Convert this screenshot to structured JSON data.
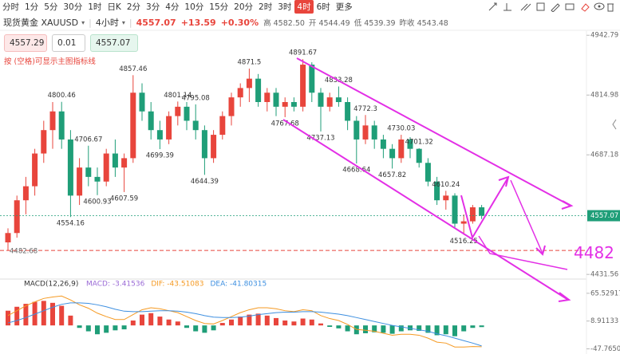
{
  "ui": {
    "timeframes": [
      {
        "label": "分时"
      },
      {
        "label": "1分"
      },
      {
        "label": "5分"
      },
      {
        "label": "30分"
      },
      {
        "label": "1时"
      },
      {
        "label": "日K"
      },
      {
        "label": "2分"
      },
      {
        "label": "3分"
      },
      {
        "label": "4分"
      },
      {
        "label": "10分"
      },
      {
        "label": "15分"
      },
      {
        "label": "20分"
      },
      {
        "label": "2时"
      },
      {
        "label": "3时"
      },
      {
        "label": "4时",
        "active": true
      },
      {
        "label": "6时"
      },
      {
        "label": "更多"
      }
    ],
    "symbol": "现货黄金 XAUUSD",
    "period": "4小时",
    "price": "4557.07",
    "change": "+13.59",
    "change_pct": "+0.30%",
    "stats": [
      "高 4582.50",
      "开 4544.49",
      "低 4539.39",
      "昨收 4543.48"
    ],
    "order": {
      "bid": "4557.29",
      "lot": "0.01",
      "ask": "4557.07"
    },
    "hint": "按 (空格)可显示主图指标线"
  },
  "chart_data": [
    {
      "type": "candlestick",
      "up_color": "#e8453c",
      "down_color": "#1f9e78",
      "ylim": [
        4425,
        4950
      ],
      "yticks": [
        4431.56,
        4687.18,
        4814.98,
        4942.79
      ],
      "last_price": 4557.07,
      "hlines": [
        {
          "value": 4482.68,
          "label": "4482.68"
        }
      ],
      "annotations": [
        {
          "value": 4482,
          "label": "4482"
        }
      ],
      "open": [
        4500,
        4520,
        4590,
        4620,
        4690,
        4740,
        4780,
        4720,
        4600,
        4660,
        4640,
        4630,
        4690,
        4660,
        4680,
        4820,
        4780,
        4740,
        4720,
        4770,
        4790,
        4760,
        4740,
        4680,
        4730,
        4770,
        4810,
        4830,
        4850,
        4800,
        4820,
        4790,
        4800,
        4790,
        4880,
        4820,
        4790,
        4810,
        4800,
        4760,
        4720,
        4750,
        4720,
        4700,
        4680,
        4720,
        4700,
        4670,
        4630,
        4590,
        4600,
        4540,
        4545,
        4575
      ],
      "high": [
        4530,
        4600,
        4640,
        4700,
        4760,
        4800,
        4800.46,
        4740,
        4680,
        4706.67,
        4660,
        4700,
        4720,
        4690,
        4857.46,
        4840,
        4800,
        4760,
        4780,
        4801.14,
        4800,
        4795.08,
        4750,
        4740,
        4780,
        4820,
        4840,
        4871.5,
        4860,
        4830,
        4830,
        4810,
        4810,
        4891.67,
        4885,
        4830,
        4820,
        4833.28,
        4810,
        4770,
        4772.3,
        4760,
        4730,
        4710,
        4730.03,
        4725,
        4701.32,
        4680,
        4640,
        4610.24,
        4605,
        4560,
        4580,
        4580
      ],
      "low": [
        4482,
        4510,
        4560,
        4600,
        4670,
        4700,
        4700,
        4554.16,
        4580,
        4620,
        4600.93,
        4620,
        4640,
        4607.59,
        4670,
        4760,
        4720,
        4699.39,
        4710,
        4750,
        4740,
        4720,
        4644.39,
        4670,
        4720,
        4750,
        4790,
        4800,
        4790,
        4780,
        4770,
        4767.68,
        4780,
        4780,
        4800,
        4737.13,
        4780,
        4790,
        4740,
        4668.64,
        4710,
        4700,
        4680,
        4657.82,
        4670,
        4680,
        4660,
        4620,
        4580,
        4570,
        4530,
        4516.25,
        4540,
        4550
      ],
      "close": [
        4520,
        4590,
        4620,
        4690,
        4740,
        4780,
        4720,
        4600,
        4660,
        4640,
        4630,
        4690,
        4660,
        4680,
        4820,
        4780,
        4740,
        4720,
        4770,
        4790,
        4760,
        4740,
        4680,
        4730,
        4770,
        4810,
        4830,
        4850,
        4800,
        4820,
        4790,
        4800,
        4790,
        4880,
        4820,
        4790,
        4810,
        4800,
        4760,
        4720,
        4750,
        4720,
        4700,
        4680,
        4720,
        4700,
        4670,
        4630,
        4590,
        4600,
        4540,
        4545,
        4575,
        4557.07
      ]
    },
    {
      "type": "macd",
      "title": "MACD(12,26,9)",
      "legend": [
        {
          "label": "MACD: -3.41536",
          "color": "#9b6bd6"
        },
        {
          "label": "DIF: -43.51083",
          "color": "#f59a23"
        },
        {
          "label": "DEA: -41.80315",
          "color": "#3d8fe0"
        }
      ],
      "ylim": [
        -55,
        75
      ],
      "yticks": [
        -47.76502,
        8.91133,
        65.52917
      ],
      "histogram": [
        30,
        38,
        44,
        48,
        50,
        46,
        40,
        20,
        -5,
        -12,
        -18,
        -15,
        -10,
        -8,
        10,
        22,
        25,
        18,
        12,
        8,
        -5,
        -12,
        -15,
        -10,
        5,
        12,
        18,
        22,
        24,
        20,
        15,
        10,
        8,
        14,
        12,
        4,
        -3,
        -6,
        -12,
        -18,
        -16,
        -14,
        -15,
        -17,
        -12,
        -10,
        -11,
        -15,
        -20,
        -18,
        -22,
        -12,
        -5,
        -3.41536
      ],
      "series": [
        {
          "name": "DIF",
          "color": "#f59a23",
          "values": [
            20,
            30,
            40,
            48,
            55,
            58,
            60,
            52,
            42,
            35,
            25,
            18,
            12,
            12,
            22,
            32,
            36,
            34,
            30,
            26,
            18,
            10,
            4,
            3,
            10,
            18,
            26,
            32,
            36,
            36,
            34,
            30,
            28,
            32,
            30,
            20,
            14,
            10,
            2,
            -8,
            -10,
            -12,
            -16,
            -20,
            -18,
            -18,
            -20,
            -26,
            -34,
            -36,
            -44,
            -44,
            -43,
            -43.51083
          ]
        },
        {
          "name": "DEA",
          "color": "#3d8fe0",
          "values": [
            5,
            10,
            16,
            23,
            30,
            37,
            43,
            46,
            46,
            45,
            42,
            38,
            33,
            29,
            28,
            28,
            29,
            30,
            30,
            29,
            27,
            24,
            20,
            17,
            16,
            16,
            17,
            19,
            22,
            24,
            26,
            27,
            27,
            28,
            28,
            27,
            25,
            23,
            20,
            16,
            12,
            8,
            4,
            0,
            -3,
            -6,
            -9,
            -12,
            -17,
            -21,
            -26,
            -31,
            -36,
            -41.80315
          ]
        }
      ]
    }
  ]
}
